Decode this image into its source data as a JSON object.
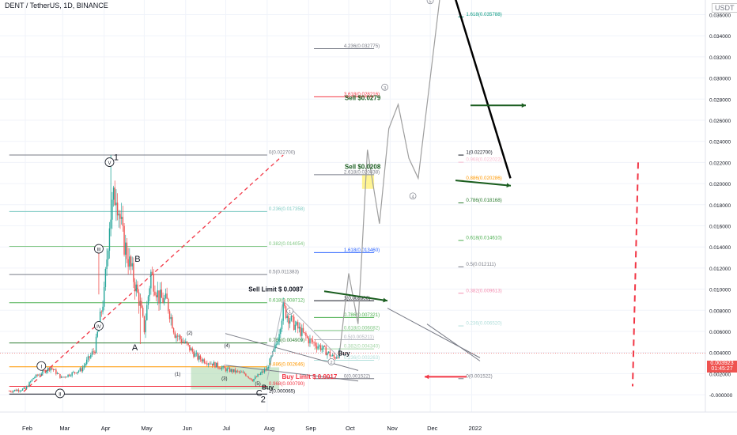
{
  "header": {
    "title": "DENT / TetherUS, 1D, BINANCE",
    "quote_currency": "USDT",
    "last_price": "0.003923",
    "countdown": "01:45:27"
  },
  "colors": {
    "up": "#26a69a",
    "down": "#ef5350",
    "fib_black": "#131722",
    "fib_green": "#4caf50",
    "fib_orange": "#ff9800",
    "fib_red": "#f23645",
    "fib_blue": "#2962ff",
    "fib_teal": "#089981",
    "fib_gray": "#787b86",
    "projection": "#9e9e9e",
    "highlight_green": "#a5d6a7",
    "highlight_yellow": "#ffeb3b",
    "annotation_green": "#1b5e20"
  },
  "chart_data": {
    "type": "candlestick",
    "title": "DENT / TetherUS, 1D, BINANCE",
    "y_axis_position": "right",
    "ylim": [
      -0.0018,
      0.0397
    ],
    "x_ticks": [
      "Feb",
      "Mar",
      "Apr",
      "May",
      "Jun",
      "Jul",
      "Aug",
      "Sep",
      "Oct",
      "Nov",
      "Dec",
      "2022"
    ],
    "y_ticks": [
      "0.036000",
      "0.034000",
      "0.032000",
      "0.030000",
      "0.028000",
      "0.026000",
      "0.024000",
      "0.022000",
      "0.020000",
      "0.018000",
      "0.016000",
      "0.014000",
      "0.012000",
      "0.010000",
      "0.008000",
      "0.006000",
      "0.004000",
      "0.002000",
      "-0.000000"
    ],
    "price_path": [
      {
        "date": "2021-01-20",
        "price": 0.00035
      },
      {
        "date": "2021-02-01",
        "price": 0.00055
      },
      {
        "date": "2021-02-07",
        "price": 0.0016
      },
      {
        "date": "2021-02-20",
        "price": 0.0026
      },
      {
        "date": "2021-02-28",
        "price": 0.0016
      },
      {
        "date": "2021-03-15",
        "price": 0.0024
      },
      {
        "date": "2021-03-25",
        "price": 0.0043
      },
      {
        "date": "2021-04-01",
        "price": 0.0095
      },
      {
        "date": "2021-04-05",
        "price": 0.0165
      },
      {
        "date": "2021-04-10",
        "price": 0.0195
      },
      {
        "date": "2021-04-15",
        "price": 0.0148
      },
      {
        "date": "2021-04-22",
        "price": 0.0115
      },
      {
        "date": "2021-04-28",
        "price": 0.0085
      },
      {
        "date": "2021-05-01",
        "price": 0.0062
      },
      {
        "date": "2021-05-06",
        "price": 0.0115
      },
      {
        "date": "2021-05-12",
        "price": 0.0092
      },
      {
        "date": "2021-05-18",
        "price": 0.0088
      },
      {
        "date": "2021-05-24",
        "price": 0.0058
      },
      {
        "date": "2021-06-01",
        "price": 0.0048
      },
      {
        "date": "2021-06-10",
        "price": 0.0035
      },
      {
        "date": "2021-06-20",
        "price": 0.003
      },
      {
        "date": "2021-07-01",
        "price": 0.0024
      },
      {
        "date": "2021-07-15",
        "price": 0.002
      },
      {
        "date": "2021-07-21",
        "price": 0.0014
      },
      {
        "date": "2021-08-01",
        "price": 0.0025
      },
      {
        "date": "2021-08-08",
        "price": 0.0048
      },
      {
        "date": "2021-08-13",
        "price": 0.0082
      },
      {
        "date": "2021-08-20",
        "price": 0.0068
      },
      {
        "date": "2021-09-01",
        "price": 0.0052
      },
      {
        "date": "2021-09-10",
        "price": 0.0045
      },
      {
        "date": "2021-09-20",
        "price": 0.0035
      },
      {
        "date": "2021-09-24",
        "price": 0.003923
      }
    ],
    "fib_sets": [
      {
        "name": "impulse-retracement",
        "date_range": [
          "2021-01-20",
          "2021-08-01"
        ],
        "label_date": "2021-08-01",
        "levels": [
          {
            "label": "0(0.022700)",
            "value": 0.0227,
            "color": "#787b86"
          },
          {
            "label": "0.236(0.017358)",
            "value": 0.017358,
            "color": "#80cbc4"
          },
          {
            "label": "0.382(0.014054)",
            "value": 0.014054,
            "color": "#81c784"
          },
          {
            "label": "0.5(0.011383)",
            "value": 0.011383,
            "color": "#787b86"
          },
          {
            "label": "0.618(0.008712)",
            "value": 0.008712,
            "color": "#4caf50"
          },
          {
            "label": "0.786(0.004909)",
            "value": 0.004909,
            "color": "#2e7d32"
          },
          {
            "label": "0.886(0.002646)",
            "value": 0.002646,
            "color": "#ff9800"
          },
          {
            "label": "0.968(0.000790)",
            "value": 0.00079,
            "color": "#f23645"
          },
          {
            "label": "1(0.000065)",
            "value": 6.5e-05,
            "color": "#131722"
          }
        ]
      },
      {
        "name": "extension",
        "date_range": [
          "2021-09-05",
          "2021-10-20"
        ],
        "label_date": "2021-09-25",
        "levels": [
          {
            "label": "4.236(0.032775)",
            "value": 0.032775,
            "color": "#787b86"
          },
          {
            "label": "3.618(0.028216)",
            "value": 0.028216,
            "color": "#f23645"
          },
          {
            "label": "2.618(0.020838)",
            "value": 0.020838,
            "color": "#787b86"
          },
          {
            "label": "1.618(0.013460)",
            "value": 0.01346,
            "color": "#2962ff"
          },
          {
            "label": "1(0.008900)",
            "value": 0.0089,
            "color": "#131722"
          },
          {
            "label": "0.786(0.007321)",
            "value": 0.007321,
            "color": "#4caf50"
          },
          {
            "label": "0.618(0.006082)",
            "value": 0.006082,
            "color": "#81c784"
          },
          {
            "label": "0.5(0.005211)",
            "value": 0.005211,
            "color": "#b2b5be"
          },
          {
            "label": "0.382(0.004340)",
            "value": 0.00434,
            "color": "#a5d6a7"
          },
          {
            "label": "0.236(0.003263)",
            "value": 0.003263,
            "color": "#b2dfdb"
          },
          {
            "label": "0(0.001522)",
            "value": 0.001522,
            "color": "#787b86"
          }
        ]
      },
      {
        "name": "right-retracement",
        "date_range": [
          "2021-12-22",
          "2021-12-26"
        ],
        "label_date": "2021-12-26",
        "levels": [
          {
            "label": "1.618(0.035788)",
            "value": 0.035788,
            "color": "#089981"
          },
          {
            "label": "1(0.022700)",
            "value": 0.0227,
            "color": "#131722"
          },
          {
            "label": "0.968(0.022022)",
            "value": 0.022022,
            "color": "#f8bbd0"
          },
          {
            "label": "0.886(0.020286)",
            "value": 0.020286,
            "color": "#ff9800"
          },
          {
            "label": "0.786(0.018168)",
            "value": 0.018168,
            "color": "#2e7d32"
          },
          {
            "label": "0.618(0.014610)",
            "value": 0.01461,
            "color": "#4caf50"
          },
          {
            "label": "0.5(0.012111)",
            "value": 0.012111,
            "color": "#787b86"
          },
          {
            "label": "0.382(0.009613)",
            "value": 0.009613,
            "color": "#f48fb1"
          },
          {
            "label": "0.236(0.006520)",
            "value": 0.00652,
            "color": "#b2dfdb"
          },
          {
            "label": "0(0.001522)",
            "value": 0.001522,
            "color": "#787b86"
          }
        ]
      }
    ],
    "projection_path": [
      {
        "date": "2021-09-24",
        "price": 0.0038
      },
      {
        "date": "2021-10-01",
        "price": 0.0115
      },
      {
        "date": "2021-10-08",
        "price": 0.0067
      },
      {
        "date": "2021-10-15",
        "price": 0.0232
      },
      {
        "date": "2021-10-24",
        "price": 0.0162
      },
      {
        "date": "2021-10-31",
        "price": 0.0252
      },
      {
        "date": "2021-11-07",
        "price": 0.0275
      },
      {
        "date": "2021-11-15",
        "price": 0.0224
      },
      {
        "date": "2021-11-22",
        "price": 0.0205
      },
      {
        "date": "2021-12-10",
        "price": 0.0395
      }
    ],
    "trend_line": [
      {
        "date": "2021-12-15",
        "price": 0.0395
      },
      {
        "date": "2022-01-30",
        "price": 0.0205
      }
    ],
    "wave_labels": [
      {
        "text": "I",
        "date": "2021-02-13",
        "price": 0.0025
      },
      {
        "text": "II",
        "date": "2021-02-27",
        "price": -0.0001
      },
      {
        "text": "III",
        "date": "2021-03-28",
        "price": 0.0136
      },
      {
        "text": "IV",
        "date": "2021-03-28",
        "price": 0.0063
      },
      {
        "text": "V",
        "date": "2021-04-05",
        "price": 0.0218
      },
      {
        "text": "1",
        "date": "2021-04-10",
        "price": 0.0222
      },
      {
        "text": "B",
        "date": "2021-04-26",
        "price": 0.0126
      },
      {
        "text": "A",
        "date": "2021-04-24",
        "price": 0.0042
      },
      {
        "text": "C",
        "date": "2021-07-26",
        "price": -0.0001
      },
      {
        "text": "2",
        "date": "2021-07-29",
        "price": -0.0007
      },
      {
        "text": "3",
        "date": "2021-11-30",
        "price": 0.0379
      },
      {
        "text": "(1)",
        "date": "2021-05-26",
        "price": 0.0018
      },
      {
        "text": "(2)",
        "date": "2021-06-04",
        "price": 0.0057
      },
      {
        "text": "(3)",
        "date": "2021-06-30",
        "price": 0.0014
      },
      {
        "text": "(4)",
        "date": "2021-07-02",
        "price": 0.0045
      },
      {
        "text": "(5)",
        "date": "2021-07-25",
        "price": 0.0009
      },
      {
        "text": "1",
        "date": "2021-08-18",
        "price": 0.0077
      },
      {
        "text": "2",
        "date": "2021-09-18",
        "price": 0.0029
      },
      {
        "text": "3",
        "date": "2021-10-28",
        "price": 0.0289
      },
      {
        "text": "4",
        "date": "2021-11-18",
        "price": 0.0186
      },
      {
        "text": "5",
        "date": "2021-12-01",
        "price": 0.0371
      }
    ],
    "annotations": [
      {
        "text": "Sell Limit $ 0.0087",
        "date": "2021-07-18",
        "price": 0.0098
      },
      {
        "text": "Sell $0.0279",
        "date": "2021-09-28",
        "price": 0.0279
      },
      {
        "text": "Sell $0.0208",
        "date": "2021-09-28",
        "price": 0.0214
      },
      {
        "text": "Buy Limit $ 0.0017",
        "date": "2021-08-12",
        "price": 0.0015
      },
      {
        "text": "Buy",
        "date": "2021-07-28",
        "price": 0.0005
      },
      {
        "text": "Buy",
        "date": "2021-09-23",
        "price": 0.0037
      }
    ],
    "zones": [
      {
        "color": "#a5d6a7",
        "from": "2021-06-05",
        "to": "2021-08-10",
        "low": 0.0005,
        "high": 0.0026
      },
      {
        "color": "#ffeb3b",
        "from": "2021-10-11",
        "to": "2021-10-20",
        "low": 0.0195,
        "high": 0.0208
      }
    ]
  }
}
